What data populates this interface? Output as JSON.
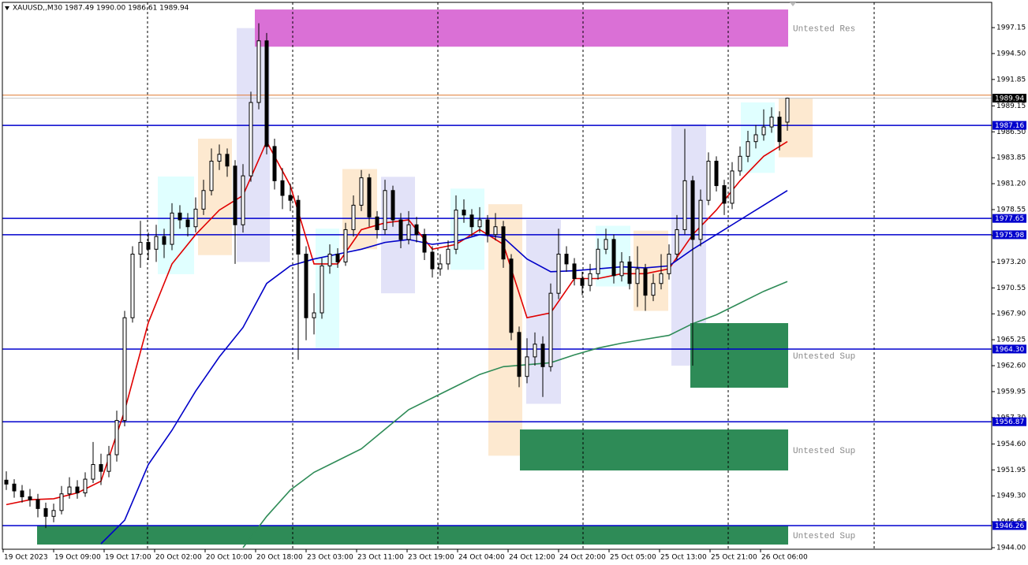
{
  "chart_data": {
    "type": "candlestick",
    "title": "XAUUSD,,M30  1987.49 1990.00 1986.61 1989.94",
    "categories": [
      "19 Oct 2023",
      "19 Oct 09:00",
      "19 Oct 17:00",
      "20 Oct 02:00",
      "20 Oct 10:00",
      "20 Oct 18:00",
      "23 Oct 03:00",
      "23 Oct 11:00",
      "23 Oct 19:00",
      "24 Oct 04:00",
      "24 Oct 12:00",
      "24 Oct 20:00",
      "25 Oct 05:00",
      "25 Oct 13:00",
      "25 Oct 21:00",
      "26 Oct 06:00"
    ],
    "ylim": [
      1943.84,
      1999.73
    ],
    "yticks": [
      1997.15,
      {
        "value": 1994.5,
        "label": "1994.50"
      },
      1991.85,
      1989.15,
      {
        "value": 1986.5,
        "label": "1986.50"
      },
      1983.85,
      {
        "value": 1981.2,
        "label": "1981.20"
      },
      1978.55,
      {
        "value": 1975.9,
        "label": "1975.90"
      },
      {
        "value": 1973.2,
        "label": "1973.20"
      },
      1970.55,
      {
        "value": 1967.9,
        "label": "1967.90"
      },
      1965.25,
      {
        "value": 1962.6,
        "label": "1962.60"
      },
      1959.95,
      {
        "value": 1957.3,
        "label": "1957.30"
      },
      {
        "value": 1954.6,
        "label": "1954.60"
      },
      1951.95,
      {
        "value": 1949.3,
        "label": "1949.30"
      },
      1946.65,
      {
        "value": 1944,
        "label": "1944.00"
      }
    ],
    "day_separators": [
      17.9,
      36.3,
      54.7,
      73.1,
      91.5,
      110
    ],
    "ohlc": [
      [
        1950.9,
        1951.8,
        1949.9,
        1950.5
      ],
      [
        1950.5,
        1951.0,
        1949.1,
        1949.8
      ],
      [
        1949.8,
        1950.4,
        1948.6,
        1949.2
      ],
      [
        1949.2,
        1950.0,
        1948.2,
        1948.9
      ],
      [
        1948.9,
        1949.5,
        1947.1,
        1948.0
      ],
      [
        1948.0,
        1948.6,
        1946.0,
        1947.2
      ],
      [
        1947.2,
        1948.5,
        1946.6,
        1947.8
      ],
      [
        1947.8,
        1950.3,
        1947.4,
        1949.5
      ],
      [
        1949.5,
        1951.2,
        1949.0,
        1950.2
      ],
      [
        1950.2,
        1950.9,
        1949.0,
        1949.6
      ],
      [
        1949.6,
        1951.7,
        1949.2,
        1951.0
      ],
      [
        1951.0,
        1954.8,
        1950.6,
        1952.5
      ],
      [
        1952.5,
        1953.6,
        1950.4,
        1951.8
      ],
      [
        1951.8,
        1954.4,
        1951.2,
        1953.5
      ],
      [
        1953.5,
        1958.0,
        1952.8,
        1957.0
      ],
      [
        1957.0,
        1968.2,
        1956.4,
        1967.5
      ],
      [
        1967.5,
        1974.8,
        1967.0,
        1974.0
      ],
      [
        1974.0,
        1977.4,
        1972.6,
        1975.2
      ],
      [
        1975.2,
        1976.2,
        1973.4,
        1974.5
      ],
      [
        1974.5,
        1977.0,
        1973.2,
        1975.8
      ],
      [
        1975.8,
        1976.6,
        1973.6,
        1975.0
      ],
      [
        1975.0,
        1979.2,
        1974.4,
        1978.2
      ],
      [
        1978.2,
        1979.0,
        1976.6,
        1977.5
      ],
      [
        1977.5,
        1978.2,
        1975.8,
        1976.8
      ],
      [
        1976.8,
        1979.8,
        1976.2,
        1978.6
      ],
      [
        1978.6,
        1981.6,
        1978.0,
        1980.5
      ],
      [
        1980.5,
        1984.8,
        1980.0,
        1983.5
      ],
      [
        1983.5,
        1985.2,
        1982.6,
        1984.2
      ],
      [
        1984.2,
        1984.8,
        1981.9,
        1983.0
      ],
      [
        1983.0,
        1983.6,
        1973.0,
        1977.0
      ],
      [
        1977.0,
        1983.2,
        1976.2,
        1982.0
      ],
      [
        1982.0,
        1990.6,
        1981.4,
        1989.5
      ],
      [
        1989.5,
        1997.6,
        1988.8,
        1995.8
      ],
      [
        1995.8,
        1996.6,
        1984.2,
        1985.0
      ],
      [
        1985.0,
        1985.8,
        1980.6,
        1981.5
      ],
      [
        1981.5,
        1982.8,
        1978.6,
        1980.0
      ],
      [
        1980.0,
        1981.2,
        1978.4,
        1979.5
      ],
      [
        1979.5,
        1980.0,
        1963.2,
        1974.0
      ],
      [
        1974.0,
        1974.8,
        1965.2,
        1967.5
      ],
      [
        1967.5,
        1970.0,
        1965.8,
        1968.0
      ],
      [
        1968.0,
        1973.6,
        1967.4,
        1972.8
      ],
      [
        1972.8,
        1975.0,
        1972.0,
        1974.0
      ],
      [
        1974.0,
        1974.6,
        1972.6,
        1973.2
      ],
      [
        1973.2,
        1977.2,
        1972.8,
        1976.5
      ],
      [
        1976.5,
        1980.0,
        1975.8,
        1979.0
      ],
      [
        1979.0,
        1982.6,
        1978.4,
        1981.8
      ],
      [
        1981.8,
        1982.2,
        1976.8,
        1977.8
      ],
      [
        1977.8,
        1978.4,
        1975.6,
        1976.5
      ],
      [
        1976.5,
        1981.6,
        1976.0,
        1980.5
      ],
      [
        1980.5,
        1981.0,
        1976.8,
        1977.5
      ],
      [
        1977.5,
        1978.2,
        1974.6,
        1975.5
      ],
      [
        1975.5,
        1978.4,
        1975.0,
        1977.0
      ],
      [
        1977.0,
        1977.8,
        1975.2,
        1976.0
      ],
      [
        1976.0,
        1976.6,
        1973.4,
        1974.2
      ],
      [
        1974.2,
        1974.8,
        1971.6,
        1972.5
      ],
      [
        1972.5,
        1974.0,
        1971.8,
        1973.0
      ],
      [
        1973.0,
        1975.4,
        1972.4,
        1974.5
      ],
      [
        1974.5,
        1980.0,
        1974.0,
        1978.5
      ],
      [
        1978.5,
        1979.6,
        1977.2,
        1978.0
      ],
      [
        1978.0,
        1978.6,
        1975.8,
        1976.8
      ],
      [
        1976.8,
        1978.8,
        1976.2,
        1977.5
      ],
      [
        1977.5,
        1978.0,
        1975.2,
        1976.0
      ],
      [
        1976.0,
        1978.2,
        1975.4,
        1976.8
      ],
      [
        1976.8,
        1977.4,
        1972.6,
        1973.5
      ],
      [
        1973.5,
        1974.0,
        1965.2,
        1966.0
      ],
      [
        1966.0,
        1966.6,
        1960.4,
        1961.5
      ],
      [
        1961.5,
        1965.4,
        1960.8,
        1963.5
      ],
      [
        1963.5,
        1966.0,
        1962.6,
        1964.8
      ],
      [
        1964.8,
        1965.6,
        1959.4,
        1962.5
      ],
      [
        1962.5,
        1971.0,
        1962.0,
        1970.0
      ],
      [
        1970.0,
        1976.6,
        1969.4,
        1974.0
      ],
      [
        1974.0,
        1974.8,
        1972.2,
        1973.0
      ],
      [
        1973.0,
        1973.6,
        1970.8,
        1971.5
      ],
      [
        1971.5,
        1972.2,
        1969.8,
        1970.8
      ],
      [
        1970.8,
        1973.0,
        1970.2,
        1972.0
      ],
      [
        1972.0,
        1975.6,
        1971.4,
        1974.5
      ],
      [
        1974.5,
        1976.6,
        1974.0,
        1975.5
      ],
      [
        1975.5,
        1976.0,
        1971.0,
        1971.8
      ],
      [
        1971.8,
        1974.2,
        1971.2,
        1973.2
      ],
      [
        1973.2,
        1973.8,
        1970.4,
        1971.0
      ],
      [
        1971.0,
        1974.8,
        1968.6,
        1972.5
      ],
      [
        1972.5,
        1973.0,
        1968.2,
        1969.8
      ],
      [
        1969.8,
        1972.0,
        1969.2,
        1971.0
      ],
      [
        1971.0,
        1974.0,
        1970.4,
        1972.0
      ],
      [
        1972.0,
        1975.0,
        1971.4,
        1974.0
      ],
      [
        1974.0,
        1978.0,
        1973.4,
        1976.5
      ],
      [
        1976.5,
        1986.8,
        1976.0,
        1981.5
      ],
      [
        1981.5,
        1982.0,
        1962.6,
        1975.5
      ],
      [
        1975.5,
        1980.6,
        1974.8,
        1979.5
      ],
      [
        1979.5,
        1984.4,
        1979.0,
        1983.5
      ],
      [
        1983.5,
        1984.0,
        1980.4,
        1981.0
      ],
      [
        1981.0,
        1981.6,
        1978.0,
        1979.2
      ],
      [
        1979.2,
        1983.4,
        1978.6,
        1982.5
      ],
      [
        1982.5,
        1985.0,
        1982.0,
        1984.0
      ],
      [
        1984.0,
        1986.6,
        1983.4,
        1985.5
      ],
      [
        1985.5,
        1987.2,
        1984.8,
        1986.2
      ],
      [
        1986.2,
        1988.8,
        1985.6,
        1987.0
      ],
      [
        1987.0,
        1989.0,
        1986.4,
        1988.0
      ],
      [
        1988.0,
        1988.6,
        1984.6,
        1985.5
      ],
      [
        1987.49,
        1990.0,
        1986.61,
        1989.94
      ]
    ],
    "moving_averages": [
      {
        "color": "#e00000",
        "values": [
          1948.4,
          1948.9,
          1949.0,
          1949.6,
          1950.8,
          1958.0,
          1967.0,
          1973.0,
          1976.0,
          1978.5,
          1980.0,
          1985.5,
          1981.0,
          1973.0,
          1973.0,
          1976.5,
          1977.2,
          1977.5,
          1974.5,
          1975.0,
          1976.5,
          1975.0,
          1967.5,
          1968.0,
          1971.5,
          1971.5,
          1972.0,
          1972.0,
          1972.5,
          1976.0,
          1978.5,
          1981.5,
          1984.0,
          1985.5
        ]
      },
      {
        "color": "#0000c8",
        "values": [
          null,
          null,
          null,
          null,
          1944.4,
          1946.8,
          1952.5,
          1956.0,
          1960.0,
          1963.5,
          1966.5,
          1971.0,
          1972.8,
          1973.5,
          1974.0,
          1974.5,
          1975.2,
          1975.5,
          1975.0,
          1975.3,
          1976.0,
          1975.7,
          1973.5,
          1972.2,
          1972.3,
          1972.5,
          1972.7,
          1972.6,
          1972.8,
          1974.5,
          1976.0,
          1977.5,
          1979.0,
          1980.5
        ]
      },
      {
        "color": "#2e8b57",
        "values": [
          null,
          null,
          null,
          null,
          null,
          null,
          null,
          null,
          null,
          null,
          1944.0,
          1947.2,
          1949.9,
          1951.7,
          1952.9,
          1954.1,
          1956.1,
          1958.1,
          1959.3,
          1960.5,
          1961.7,
          1962.5,
          1962.7,
          1962.9,
          1963.7,
          1964.4,
          1964.9,
          1965.3,
          1965.7,
          1966.9,
          1967.8,
          1969.0,
          1970.2,
          1971.2
        ]
      }
    ],
    "boxes": [
      {
        "start": 19.2,
        "end": 23.8,
        "high": 1981.93,
        "low": 1971.95,
        "color": "#e0ffff"
      },
      {
        "start": 24.3,
        "end": 28.6,
        "high": 1985.8,
        "low": 1973.9,
        "color": "#fde9d0"
      },
      {
        "start": 29.2,
        "end": 33.4,
        "high": 1997.1,
        "low": 1973.2,
        "color": "#e2e2f8"
      },
      {
        "start": 39.2,
        "end": 42.2,
        "high": 1976.6,
        "low": 1964.4,
        "color": "#e0ffff"
      },
      {
        "start": 42.6,
        "end": 47,
        "high": 1982.7,
        "low": 1974.5,
        "color": "#fde9d0"
      },
      {
        "start": 47.5,
        "end": 51.8,
        "high": 1981.9,
        "low": 1970.0,
        "color": "#e2e2f8"
      },
      {
        "start": 56.3,
        "end": 60.6,
        "high": 1980.7,
        "low": 1972.4,
        "color": "#e0ffff"
      },
      {
        "start": 61.1,
        "end": 65.4,
        "high": 1979.1,
        "low": 1953.4,
        "color": "#fde9d0"
      },
      {
        "start": 65.9,
        "end": 70.3,
        "high": 1977.5,
        "low": 1958.7,
        "color": "#e2e2f8"
      },
      {
        "start": 74.7,
        "end": 79.1,
        "high": 1976.9,
        "low": 1970.7,
        "color": "#e0ffff"
      },
      {
        "start": 79.5,
        "end": 83.9,
        "high": 1976.4,
        "low": 1968.2,
        "color": "#fde9d0"
      },
      {
        "start": 84.3,
        "end": 88.7,
        "high": 1987.3,
        "low": 1962.6,
        "color": "#e2e2f8"
      },
      {
        "start": 93.1,
        "end": 97.4,
        "high": 1989.5,
        "low": 1982.3,
        "color": "#e0ffff"
      },
      {
        "start": 97.9,
        "end": 102.2,
        "high": 1989.9,
        "low": 1983.9,
        "color": "#fde9d0"
      }
    ],
    "zones": [
      {
        "label": "Untested Res",
        "start": 31.5,
        "top": 1999.0,
        "bottom": 1995.2,
        "color": "#da70d6"
      },
      {
        "label": "Untested Sup",
        "start": 86.7,
        "top": 1966.95,
        "bottom": 1960.35,
        "color": "#2e8b57"
      },
      {
        "label": "Untested Sup",
        "start": 65.1,
        "top": 1956.08,
        "bottom": 1951.89,
        "color": "#2e8b57"
      },
      {
        "label": "Untested Sup",
        "start": 3.9,
        "top": 1946.26,
        "bottom": 1944.32,
        "color": "#2e8b57"
      }
    ],
    "levels": [
      1987.16,
      1977.65,
      1975.98,
      {
        "value": 1964.3,
        "label": "1964.30"
      },
      1956.87,
      1946.26
    ],
    "level_color": "#0000cd",
    "ask_line": 1990.25,
    "price": 1989.94
  }
}
